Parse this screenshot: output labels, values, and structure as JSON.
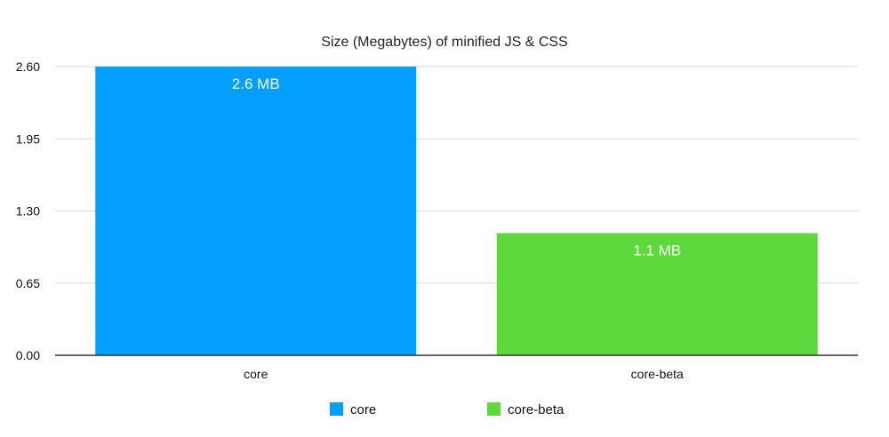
{
  "chart_data": {
    "type": "bar",
    "title": "Size (Megabytes) of minified JS & CSS",
    "xlabel": "",
    "ylabel": "",
    "categories": [
      "core",
      "core-beta"
    ],
    "values": [
      2.6,
      1.1
    ],
    "data_labels": [
      "2.6 MB",
      "1.1 MB"
    ],
    "colors": [
      "#039ffe",
      "#5ed93b"
    ],
    "ylim": [
      0,
      2.6
    ],
    "yticks": [
      "0.00",
      "0.65",
      "1.30",
      "1.95",
      "2.60"
    ],
    "ytick_values": [
      0,
      0.65,
      1.3,
      1.95,
      2.6
    ],
    "grid": true,
    "legend": {
      "placement": "bottom",
      "entries": [
        "core",
        "core-beta"
      ]
    }
  }
}
